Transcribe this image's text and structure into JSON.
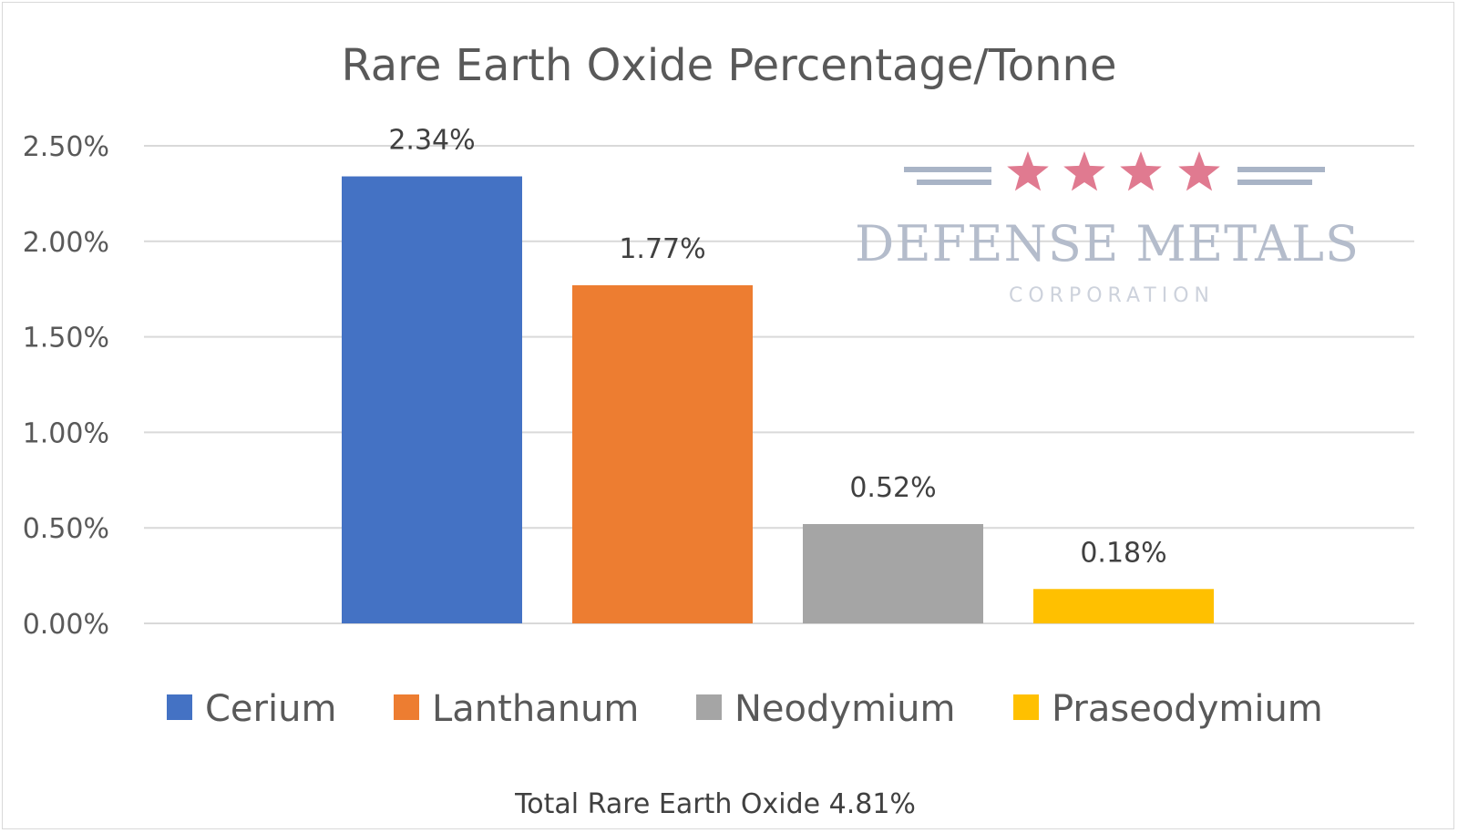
{
  "chart_data": {
    "type": "bar",
    "title": "Rare Earth Oxide Percentage/Tonne",
    "categories": [
      "Cerium",
      "Lanthanum",
      "Neodymium",
      "Praseodymium"
    ],
    "values": [
      2.34,
      1.77,
      0.52,
      0.18
    ],
    "data_labels": [
      "2.34%",
      "1.77%",
      "0.52%",
      "0.18%"
    ],
    "colors": [
      "#4472c4",
      "#ed7d31",
      "#a5a5a5",
      "#ffc000"
    ],
    "ylim": [
      0,
      2.5
    ],
    "yticks": [
      0,
      0.5,
      1.0,
      1.5,
      2.0,
      2.5
    ],
    "ytick_labels": [
      "0.00%",
      "0.50%",
      "1.00%",
      "1.50%",
      "2.00%",
      "2.50%"
    ],
    "grid": true,
    "legend_position": "bottom",
    "footer": "Total Rare Earth Oxide 4.81%"
  },
  "logo": {
    "name": "DEFENSE METALS",
    "sub": "CORPORATION",
    "star_color": "#e07a90",
    "bar_color": "#a9b4c6"
  }
}
